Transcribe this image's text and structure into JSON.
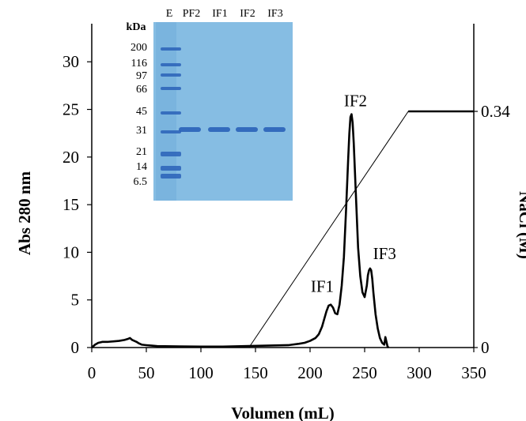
{
  "chart_data": {
    "type": "line",
    "xlabel": "Volumen (mL)",
    "ylabel": "Abs 280 nm",
    "y2label": "NaCl (M)",
    "xlim": [
      0,
      350
    ],
    "ylim": [
      0,
      34
    ],
    "xticks": [
      "0",
      "50",
      "100",
      "150",
      "200",
      "250",
      "300",
      "350"
    ],
    "yticks": [
      "0",
      "5",
      "10",
      "15",
      "20",
      "25",
      "30"
    ],
    "y2ticks": [
      "0",
      "0.34"
    ],
    "series": [
      {
        "x": [
          0,
          3,
          6,
          10,
          15,
          20,
          25,
          30,
          33,
          35,
          37,
          39,
          41,
          43,
          46,
          50,
          55,
          60,
          80,
          100,
          120,
          140,
          160,
          180,
          190,
          195,
          200,
          205,
          208,
          211,
          213,
          215,
          217,
          219,
          221,
          223,
          225,
          227,
          229,
          231,
          233,
          235,
          236,
          237,
          238,
          239,
          240,
          242,
          244,
          246,
          248,
          250,
          252,
          253,
          254,
          255,
          256,
          257,
          258,
          260,
          262,
          264,
          266,
          268,
          269,
          270,
          271,
          272
        ],
        "y": [
          0,
          0.3,
          0.5,
          0.6,
          0.6,
          0.65,
          0.7,
          0.8,
          0.9,
          1.0,
          0.8,
          0.7,
          0.6,
          0.45,
          0.3,
          0.25,
          0.2,
          0.15,
          0.12,
          0.1,
          0.1,
          0.15,
          0.2,
          0.25,
          0.4,
          0.5,
          0.7,
          1.0,
          1.4,
          2.2,
          3.0,
          3.8,
          4.4,
          4.5,
          4.2,
          3.6,
          3.5,
          4.5,
          6.5,
          9.5,
          14.5,
          20,
          22.5,
          24.2,
          24.5,
          23.6,
          21.5,
          16,
          10.5,
          7.5,
          5.8,
          5.3,
          6.5,
          7.6,
          8.1,
          8.3,
          8.1,
          7.2,
          5.8,
          3.5,
          2.0,
          1.0,
          0.5,
          0.3,
          1.1,
          0.6,
          0.1,
          0
        ]
      }
    ],
    "gradient": {
      "x": [
        0,
        144,
        290,
        350
      ],
      "y2": [
        0,
        0,
        0.34,
        0.34
      ]
    },
    "annotations": [
      {
        "label": "IF1",
        "x": 217,
        "y": 4.5
      },
      {
        "label": "IF2",
        "x": 238,
        "y": 24.5
      },
      {
        "label": "IF3",
        "x": 256,
        "y": 8.3
      }
    ],
    "inset_gel": {
      "lanes": [
        "E",
        "PF2",
        "IF1",
        "IF2",
        "IF3"
      ],
      "marker_unit": "kDa",
      "markers": [
        "200",
        "116",
        "97",
        "66",
        "45",
        "31",
        "21",
        "14",
        "6.5"
      ]
    },
    "colors": {
      "line": "#000000",
      "gel_bg": "#86bde3",
      "band": "#2a62b8"
    }
  }
}
